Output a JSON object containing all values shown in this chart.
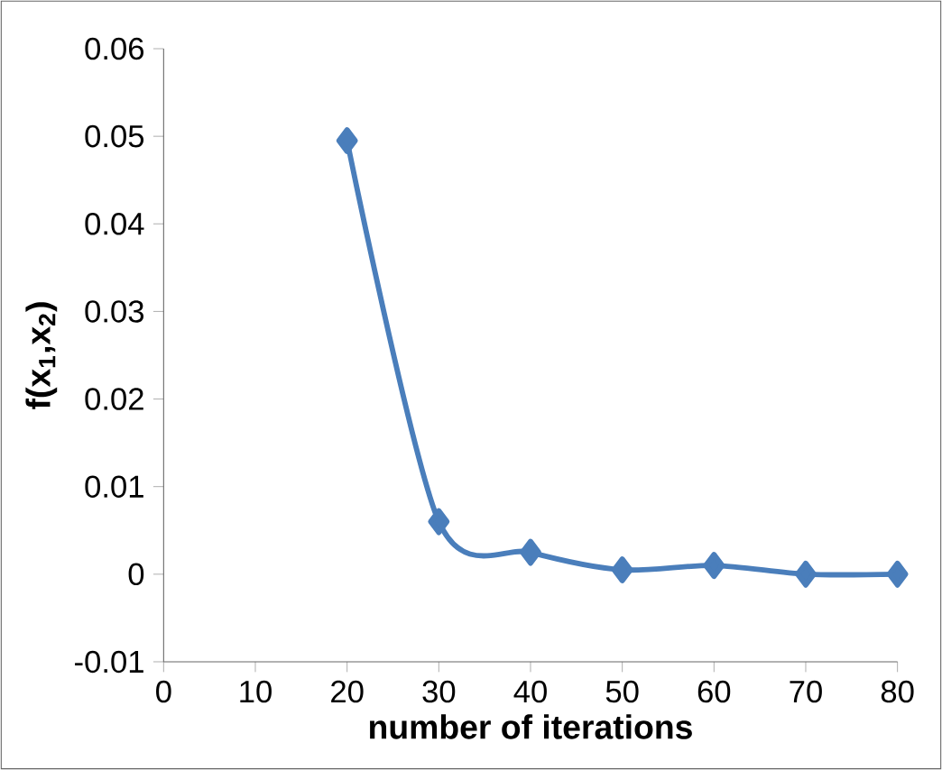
{
  "chart_data": {
    "type": "line",
    "xlabel": "number of iterations",
    "ylabel": "f(x$_{1}$,x$_{2}$)",
    "x": [
      20,
      30,
      40,
      50,
      60,
      70,
      80
    ],
    "series": [
      {
        "color": "#4a7ebb",
        "values": [
          0.0495,
          0.006,
          0.0025,
          0.0005,
          0.001,
          0.0,
          0.0
        ]
      }
    ],
    "xlim": [
      0,
      80
    ],
    "ylim": [
      -0.01,
      0.06
    ],
    "xticks": [
      0,
      10,
      20,
      30,
      40,
      50,
      60,
      70,
      80
    ],
    "yticks": [
      -0.01,
      0,
      0.01,
      0.02,
      0.03,
      0.04,
      0.05,
      0.06
    ],
    "marker": "diamond",
    "line_style": "solid"
  }
}
